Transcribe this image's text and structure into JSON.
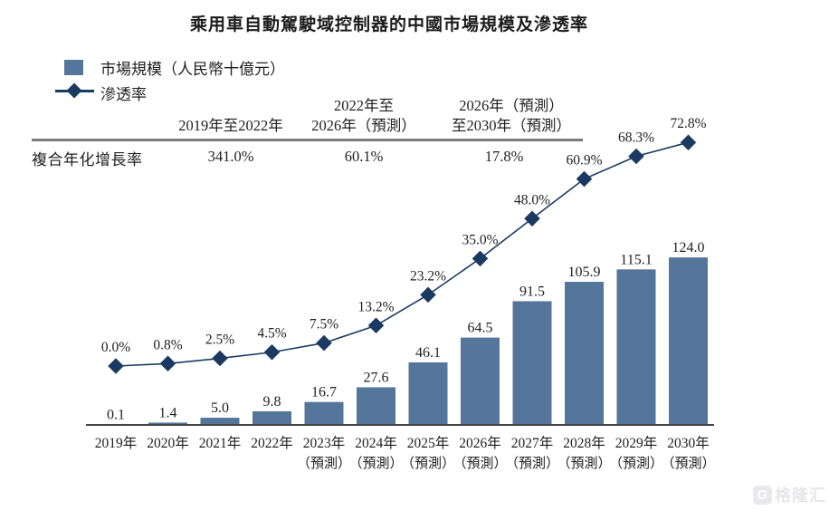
{
  "title": "乘用車自動駕駛域控制器的中國市場規模及滲透率",
  "colors": {
    "bar": "#54769a",
    "line": "#1a3a62",
    "axis": "#464646",
    "text": "#1f1f1f",
    "separator": "#7a7a7a"
  },
  "legend": {
    "items": [
      {
        "marker": "square-icon",
        "label": "市場規模（人民幣十億元）"
      },
      {
        "marker": "diamond-line-icon",
        "label": "滲透率"
      }
    ]
  },
  "cagr_table": {
    "row_label": "複合年化增長率",
    "columns": [
      {
        "header_lines": [
          "2019年至2022年",
          ""
        ],
        "value": "341.0%"
      },
      {
        "header_lines": [
          "2022年至",
          "2026年（預測）"
        ],
        "value": "60.1%"
      },
      {
        "header_lines": [
          "2026年（預測）",
          "至2030年（預測）"
        ],
        "value": "17.8%"
      }
    ]
  },
  "chart_data": {
    "type": "bar+line",
    "categories": [
      "2019年",
      "2020年",
      "2021年",
      "2022年",
      "2023年",
      "2024年",
      "2025年",
      "2026年",
      "2027年",
      "2028年",
      "2029年",
      "2030年"
    ],
    "category_notes": [
      "",
      "",
      "",
      "",
      "（預測）",
      "（預測）",
      "（預測）",
      "（預測）",
      "（預測）",
      "（預測）",
      "（預測）",
      "（預測）"
    ],
    "series": [
      {
        "name": "市場規模（人民幣十億元）",
        "type": "bar",
        "values": [
          0.1,
          1.4,
          5.0,
          9.8,
          16.7,
          27.6,
          46.1,
          64.5,
          91.5,
          105.9,
          115.1,
          124.0
        ],
        "labels": [
          "0.1",
          "1.4",
          "5.0",
          "9.8",
          "16.7",
          "27.6",
          "46.1",
          "64.5",
          "91.5",
          "105.9",
          "115.1",
          "124.0"
        ]
      },
      {
        "name": "滲透率",
        "type": "line",
        "values": [
          0.0,
          0.8,
          2.5,
          4.5,
          7.5,
          13.2,
          23.2,
          35.0,
          48.0,
          60.9,
          68.3,
          72.8
        ],
        "labels": [
          "0.0%",
          "0.8%",
          "2.5%",
          "4.5%",
          "7.5%",
          "13.2%",
          "23.2%",
          "35.0%",
          "48.0%",
          "60.9%",
          "68.3%",
          "72.8%"
        ]
      }
    ],
    "legend_position": "top-left",
    "grid": false,
    "ylim_bar": [
      0,
      130
    ],
    "ylim_line_pct": [
      0,
      80
    ]
  },
  "watermark": {
    "icon": "G",
    "text": "格隆汇"
  }
}
